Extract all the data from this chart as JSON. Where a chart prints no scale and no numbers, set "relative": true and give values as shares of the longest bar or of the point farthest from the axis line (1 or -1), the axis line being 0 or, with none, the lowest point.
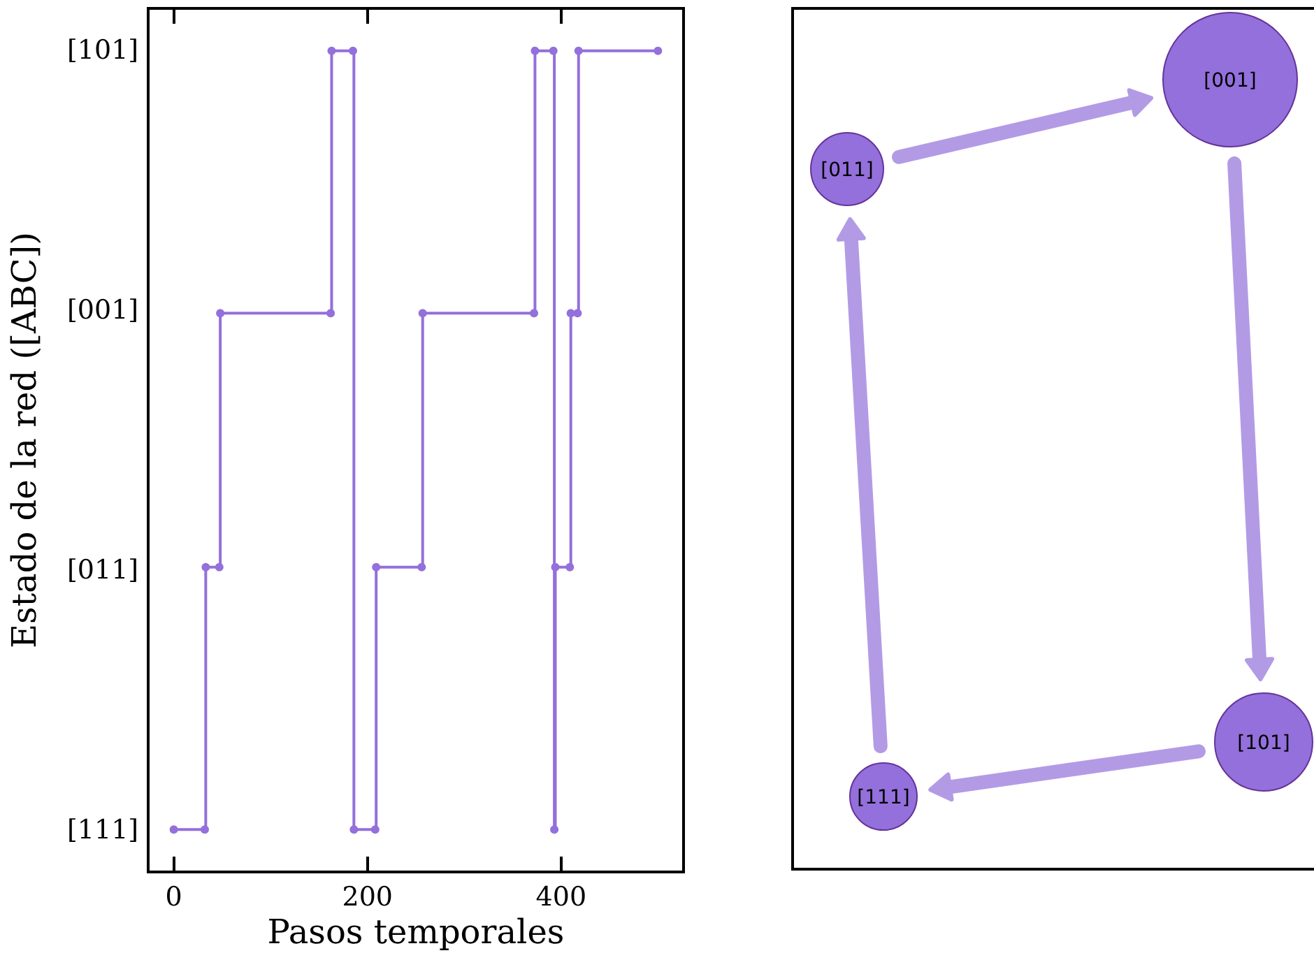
{
  "chart_data": [
    {
      "type": "step",
      "xlabel": "Pasos temporales",
      "ylabel": "Estado de la red ([ABC])",
      "x": [
        0,
        32,
        33,
        47,
        48,
        162,
        163,
        185,
        186,
        208,
        209,
        256,
        257,
        372,
        373,
        392,
        393,
        394,
        409,
        410,
        417,
        418,
        500
      ],
      "y_categories": [
        "[101]",
        "[001]",
        "[011]",
        "[111]"
      ],
      "relative": true,
      "series": [
        {
          "color": "#9370db",
          "values": [
            0.05,
            0.05,
            0.37,
            0.37,
            0.68,
            0.68,
            1,
            1,
            0.05,
            0.05,
            0.37,
            0.37,
            0.68,
            0.68,
            1,
            1,
            0.05,
            0.37,
            0.37,
            0.68,
            0.68,
            1,
            1
          ]
        }
      ],
      "xlim": [
        -25,
        525
      ],
      "xticks": [
        0,
        200,
        400
      ],
      "grid": false,
      "marker": "circle",
      "line_style": "solid"
    },
    {
      "type": "other",
      "annotations": [
        "[001]",
        "[011]",
        "[101]",
        "[111]"
      ]
    }
  ]
}
